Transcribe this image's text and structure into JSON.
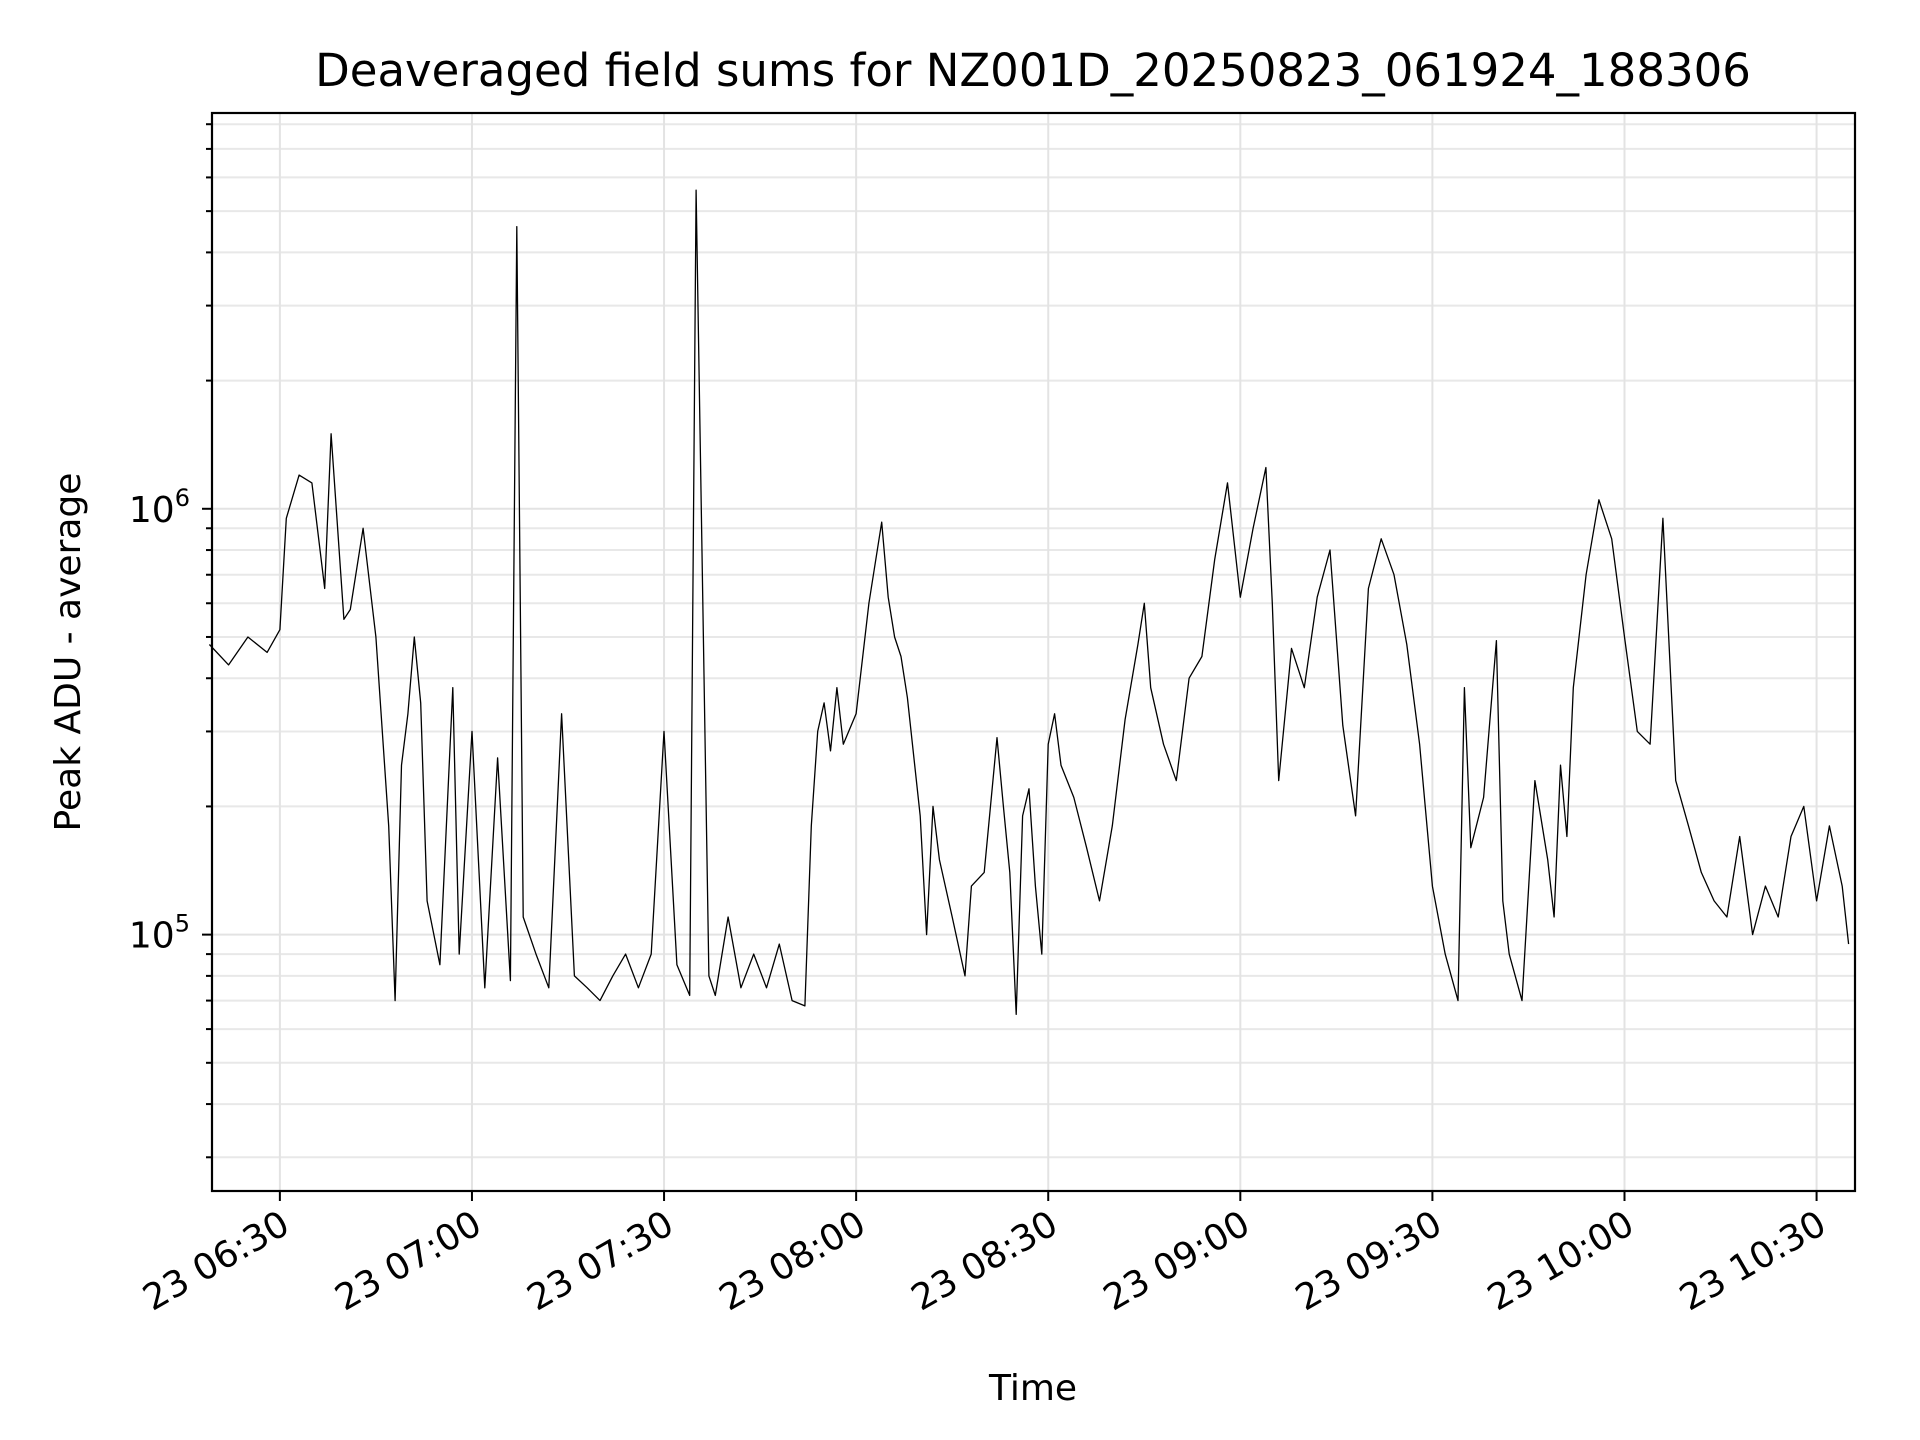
{
  "chart_data": {
    "type": "line",
    "title": "Deaveraged field sums for NZ001D_20250823_061924_188306",
    "xlabel": "Time",
    "ylabel": "Peak ADU - average",
    "yscale": "log",
    "xlim": [
      "2025-08-23 06:19:24",
      "2025-08-23 10:36:00"
    ],
    "ylim": [
      25000,
      8500000
    ],
    "grid": true,
    "legend": "none",
    "line_color": "#000000",
    "x_ticks": [
      "23 06:30",
      "23 07:00",
      "23 07:30",
      "23 08:00",
      "23 08:30",
      "23 09:00",
      "23 09:30",
      "23 10:00",
      "23 10:30"
    ],
    "y_ticks": [
      {
        "value": 100000,
        "base": "10",
        "exp": "5"
      },
      {
        "value": 1000000,
        "base": "10",
        "exp": "6"
      }
    ],
    "series": [
      {
        "x": [
          "06:19",
          "06:22",
          "06:25",
          "06:28",
          "06:30",
          "06:31",
          "06:33",
          "06:35",
          "06:37",
          "06:38",
          "06:40",
          "06:41",
          "06:43",
          "06:45",
          "06:47",
          "06:48",
          "06:49",
          "06:50",
          "06:51",
          "06:52",
          "06:53",
          "06:55",
          "06:57",
          "06:58",
          "07:00",
          "07:02",
          "07:04",
          "07:06",
          "07:07",
          "07:08",
          "07:10",
          "07:12",
          "07:14",
          "07:16",
          "07:18",
          "07:20",
          "07:22",
          "07:24",
          "07:26",
          "07:28",
          "07:30",
          "07:32",
          "07:34",
          "07:35",
          "07:37",
          "07:38",
          "07:40",
          "07:42",
          "07:44",
          "07:46",
          "07:48",
          "07:50",
          "07:52",
          "07:53",
          "07:54",
          "07:55",
          "07:56",
          "07:57",
          "07:58",
          "08:00",
          "08:02",
          "08:04",
          "08:05",
          "08:06",
          "08:07",
          "08:08",
          "08:10",
          "08:11",
          "08:12",
          "08:13",
          "08:15",
          "08:17",
          "08:18",
          "08:20",
          "08:22",
          "08:23",
          "08:24",
          "08:25",
          "08:26",
          "08:27",
          "08:28",
          "08:29",
          "08:30",
          "08:31",
          "08:32",
          "08:34",
          "08:36",
          "08:38",
          "08:40",
          "08:42",
          "08:44",
          "08:45",
          "08:46",
          "08:48",
          "08:50",
          "08:52",
          "08:54",
          "08:56",
          "08:58",
          "09:00",
          "09:02",
          "09:04",
          "09:05",
          "09:06",
          "09:08",
          "09:10",
          "09:12",
          "09:14",
          "09:16",
          "09:18",
          "09:20",
          "09:22",
          "09:24",
          "09:26",
          "09:28",
          "09:30",
          "09:32",
          "09:34",
          "09:35",
          "09:36",
          "09:38",
          "09:40",
          "09:41",
          "09:42",
          "09:44",
          "09:46",
          "09:48",
          "09:49",
          "09:50",
          "09:51",
          "09:52",
          "09:54",
          "09:56",
          "09:58",
          "10:00",
          "10:02",
          "10:04",
          "10:06",
          "10:08",
          "10:10",
          "10:12",
          "10:14",
          "10:16",
          "10:18",
          "10:20",
          "10:22",
          "10:24",
          "10:26",
          "10:28",
          "10:30",
          "10:32",
          "10:34",
          "10:35"
        ],
        "y": [
          480000,
          430000,
          500000,
          460000,
          520000,
          950000,
          1200000,
          1150000,
          650000,
          1500000,
          550000,
          580000,
          900000,
          500000,
          180000,
          70000,
          250000,
          330000,
          500000,
          350000,
          120000,
          85000,
          380000,
          90000,
          300000,
          75000,
          260000,
          78000,
          4600000,
          110000,
          90000,
          75000,
          330000,
          80000,
          75000,
          70000,
          80000,
          90000,
          75000,
          90000,
          300000,
          85000,
          72000,
          5600000,
          80000,
          72000,
          110000,
          75000,
          90000,
          75000,
          95000,
          70000,
          68000,
          180000,
          300000,
          350000,
          270000,
          380000,
          280000,
          330000,
          600000,
          930000,
          620000,
          500000,
          450000,
          360000,
          190000,
          100000,
          200000,
          150000,
          110000,
          80000,
          130000,
          140000,
          290000,
          200000,
          140000,
          65000,
          190000,
          220000,
          130000,
          90000,
          280000,
          330000,
          250000,
          210000,
          160000,
          120000,
          180000,
          320000,
          480000,
          600000,
          380000,
          280000,
          230000,
          400000,
          450000,
          760000,
          1150000,
          620000,
          900000,
          1250000,
          600000,
          230000,
          470000,
          380000,
          620000,
          800000,
          310000,
          190000,
          650000,
          850000,
          700000,
          480000,
          280000,
          130000,
          90000,
          70000,
          380000,
          160000,
          210000,
          490000,
          120000,
          90000,
          70000,
          230000,
          150000,
          110000,
          250000,
          170000,
          380000,
          700000,
          1050000,
          850000,
          500000,
          300000,
          280000,
          950000,
          230000,
          180000,
          140000,
          120000,
          110000,
          170000,
          100000,
          130000,
          110000,
          170000,
          200000,
          120000,
          180000,
          130000,
          95000
        ]
      }
    ]
  }
}
